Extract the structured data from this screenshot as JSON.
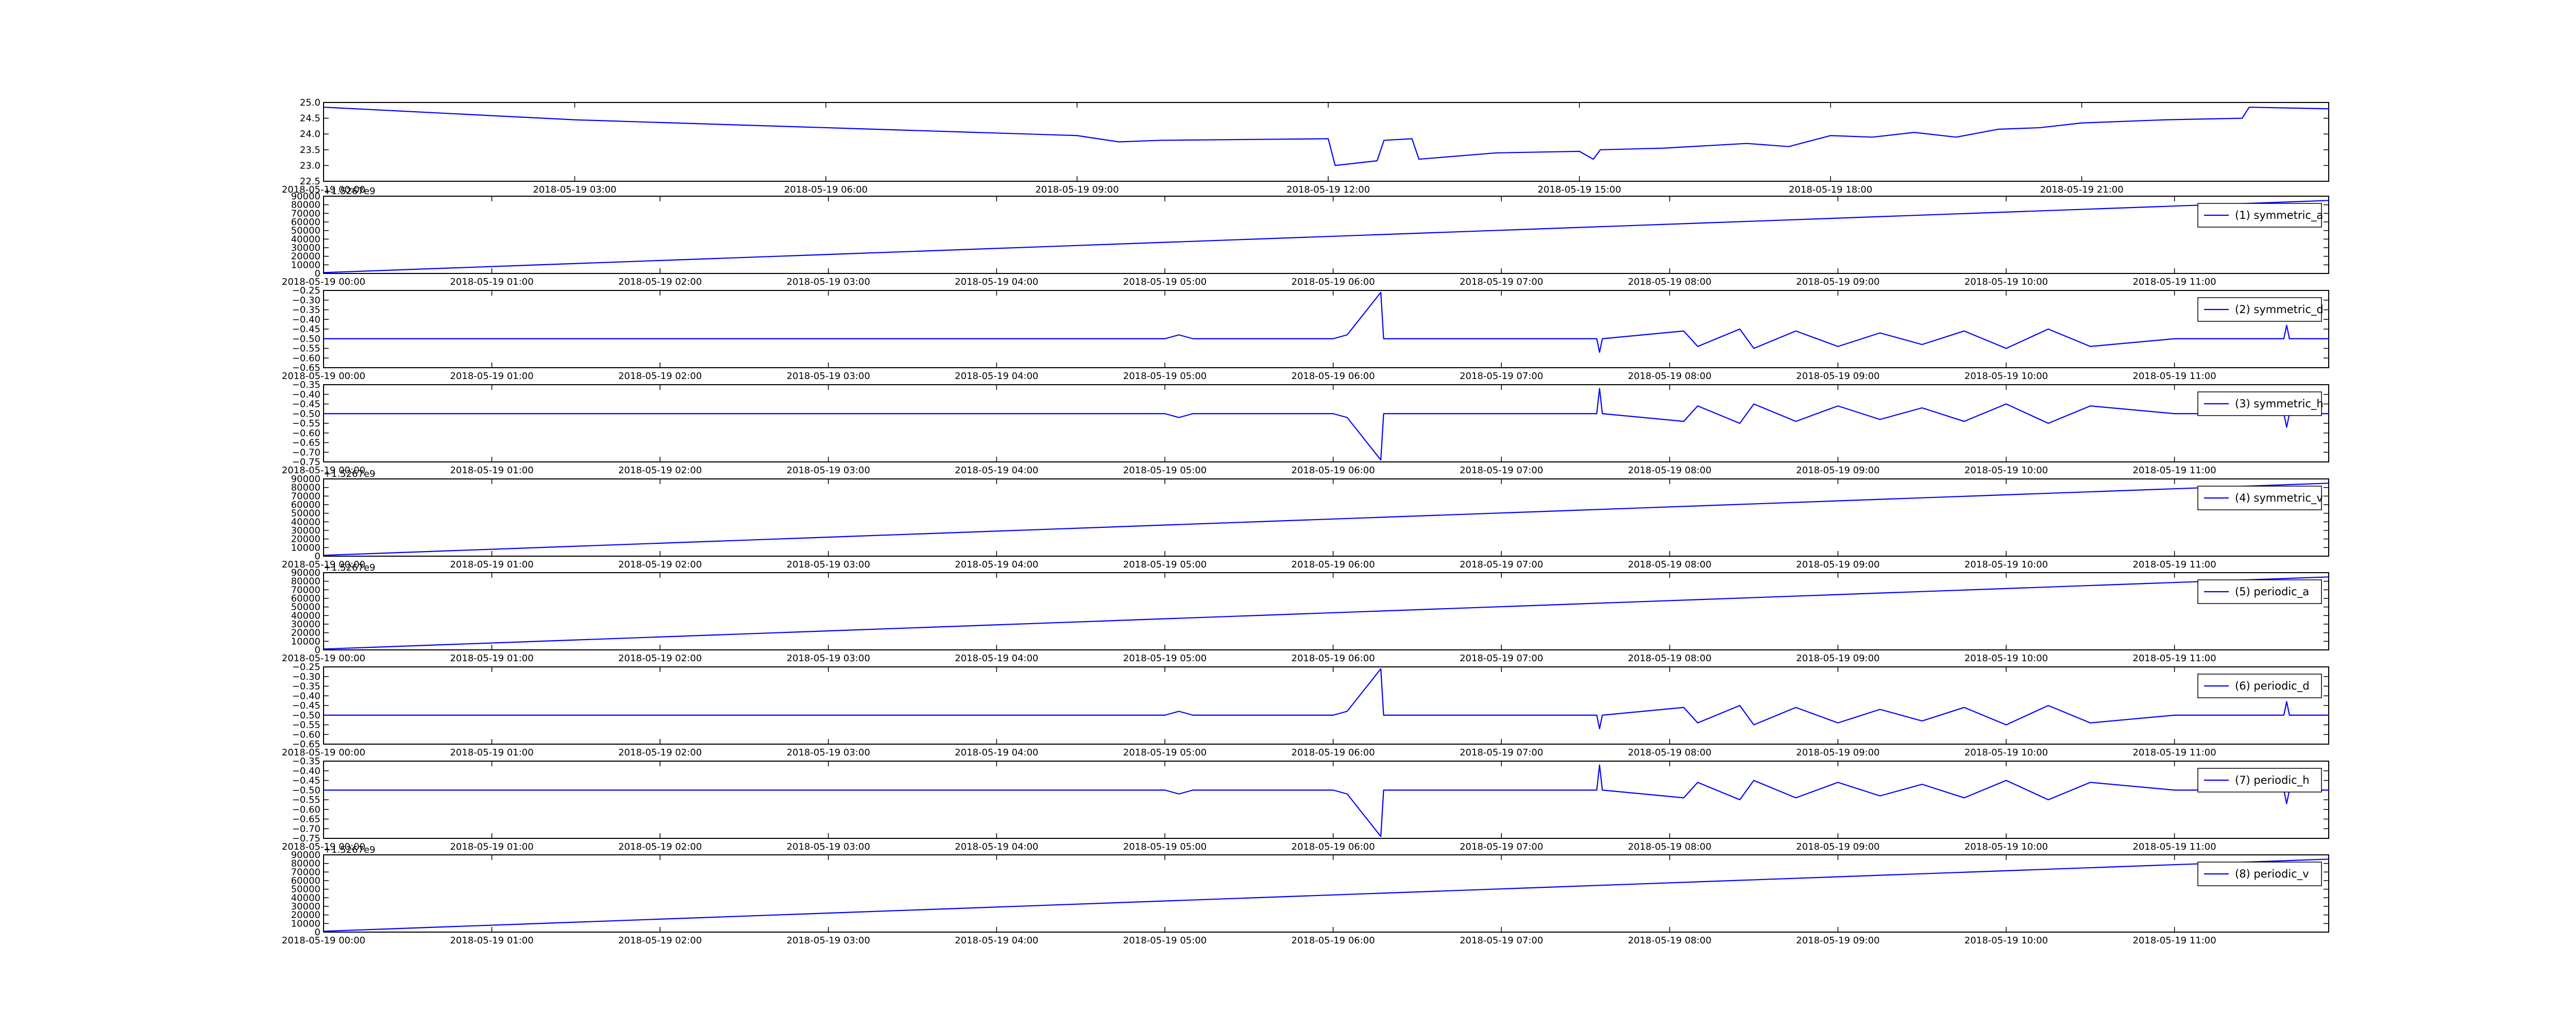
{
  "chart_data": [
    {
      "type": "line",
      "legend": null,
      "x": [
        "2018-05-19 00:00",
        "2018-05-19 03:00",
        "2018-05-19 06:00",
        "2018-05-19 09:00",
        "2018-05-19 09:30",
        "2018-05-19 10:00",
        "2018-05-19 12:00",
        "2018-05-19 12:05",
        "2018-05-19 12:35",
        "2018-05-19 12:40",
        "2018-05-19 13:00",
        "2018-05-19 13:05",
        "2018-05-19 14:00",
        "2018-05-19 15:00",
        "2018-05-19 15:10",
        "2018-05-19 15:15",
        "2018-05-19 16:00",
        "2018-05-19 17:00",
        "2018-05-19 17:30",
        "2018-05-19 18:00",
        "2018-05-19 18:30",
        "2018-05-19 19:00",
        "2018-05-19 19:30",
        "2018-05-19 20:00",
        "2018-05-19 20:30",
        "2018-05-19 21:00",
        "2018-05-19 22:00",
        "2018-05-19 22:55",
        "2018-05-19 23:00",
        "2018-05-19 23:57"
      ],
      "series": [
        {
          "name": null,
          "color": "#0000ff",
          "values": [
            24.85,
            24.45,
            24.2,
            23.95,
            23.75,
            23.8,
            23.85,
            23.0,
            23.15,
            23.8,
            23.85,
            23.2,
            23.4,
            23.45,
            23.2,
            23.5,
            23.55,
            23.7,
            23.6,
            23.95,
            23.9,
            24.05,
            23.9,
            24.15,
            24.2,
            24.35,
            24.45,
            24.5,
            24.85,
            24.8
          ]
        }
      ],
      "xlim": [
        "2018-05-19 00:00",
        "2018-05-19 23:57"
      ],
      "xticks": [
        "2018-05-19 00:00",
        "2018-05-19 03:00",
        "2018-05-19 06:00",
        "2018-05-19 09:00",
        "2018-05-19 12:00",
        "2018-05-19 15:00",
        "2018-05-19 18:00",
        "2018-05-19 21:00"
      ],
      "ylim": [
        22.5,
        25.0
      ],
      "yticks": [
        {
          "value": 22.5,
          "label": "22.5"
        },
        {
          "value": 23,
          "label": "23.0"
        },
        {
          "value": 23.5,
          "label": "23.5"
        },
        {
          "value": 24,
          "label": "24.0"
        },
        {
          "value": 24.5,
          "label": "24.5"
        },
        {
          "value": 25,
          "label": "25.0"
        }
      ]
    },
    {
      "type": "line",
      "offset_text": "+1.5267e9",
      "x": [
        "2018-05-19 00:00",
        "2018-05-19 11:55"
      ],
      "series": [
        {
          "name": "(1) symmetric_a",
          "color": "#0000ff",
          "values": [
            1000,
            85000
          ]
        }
      ],
      "xlim": [
        "2018-05-19 00:00",
        "2018-05-19 11:55"
      ],
      "xticks": [
        "2018-05-19 00:00",
        "2018-05-19 01:00",
        "2018-05-19 02:00",
        "2018-05-19 03:00",
        "2018-05-19 04:00",
        "2018-05-19 05:00",
        "2018-05-19 06:00",
        "2018-05-19 07:00",
        "2018-05-19 08:00",
        "2018-05-19 09:00",
        "2018-05-19 10:00",
        "2018-05-19 11:00"
      ],
      "ylim": [
        0,
        90000
      ],
      "yticks": [
        0,
        10000,
        20000,
        30000,
        40000,
        50000,
        60000,
        70000,
        80000,
        90000
      ]
    },
    {
      "type": "line",
      "x": [
        "2018-05-19 00:00",
        "2018-05-19 05:00",
        "2018-05-19 05:05",
        "2018-05-19 05:10",
        "2018-05-19 06:00",
        "2018-05-19 06:05",
        "2018-05-19 06:17",
        "2018-05-19 06:18",
        "2018-05-19 06:19",
        "2018-05-19 07:00",
        "2018-05-19 07:34",
        "2018-05-19 07:35",
        "2018-05-19 07:36",
        "2018-05-19 08:05",
        "2018-05-19 08:10",
        "2018-05-19 08:25",
        "2018-05-19 08:30",
        "2018-05-19 08:45",
        "2018-05-19 09:00",
        "2018-05-19 09:15",
        "2018-05-19 09:30",
        "2018-05-19 09:45",
        "2018-05-19 10:00",
        "2018-05-19 10:15",
        "2018-05-19 10:30",
        "2018-05-19 11:00",
        "2018-05-19 11:39",
        "2018-05-19 11:40",
        "2018-05-19 11:41",
        "2018-05-19 11:55"
      ],
      "series": [
        {
          "name": "(2) symmetric_d",
          "color": "#0000ff",
          "values": [
            -0.5,
            -0.5,
            -0.48,
            -0.5,
            -0.5,
            -0.48,
            -0.26,
            -0.5,
            -0.5,
            -0.5,
            -0.5,
            -0.57,
            -0.5,
            -0.46,
            -0.54,
            -0.45,
            -0.55,
            -0.46,
            -0.54,
            -0.47,
            -0.53,
            -0.46,
            -0.55,
            -0.45,
            -0.54,
            -0.5,
            -0.5,
            -0.43,
            -0.5,
            -0.5
          ]
        }
      ],
      "xlim": [
        "2018-05-19 00:00",
        "2018-05-19 11:55"
      ],
      "xticks": [
        "2018-05-19 00:00",
        "2018-05-19 01:00",
        "2018-05-19 02:00",
        "2018-05-19 03:00",
        "2018-05-19 04:00",
        "2018-05-19 05:00",
        "2018-05-19 06:00",
        "2018-05-19 07:00",
        "2018-05-19 08:00",
        "2018-05-19 09:00",
        "2018-05-19 10:00",
        "2018-05-19 11:00"
      ],
      "ylim": [
        -0.65,
        -0.25
      ],
      "yticks": [
        {
          "value": -0.65,
          "label": "−0.65"
        },
        {
          "value": -0.6,
          "label": "−0.60"
        },
        {
          "value": -0.55,
          "label": "−0.55"
        },
        {
          "value": -0.5,
          "label": "−0.50"
        },
        {
          "value": -0.45,
          "label": "−0.45"
        },
        {
          "value": -0.4,
          "label": "−0.40"
        },
        {
          "value": -0.35,
          "label": "−0.35"
        },
        {
          "value": -0.3,
          "label": "−0.30"
        },
        {
          "value": -0.25,
          "label": "−0.25"
        }
      ]
    },
    {
      "type": "line",
      "x": [
        "2018-05-19 00:00",
        "2018-05-19 05:00",
        "2018-05-19 05:05",
        "2018-05-19 05:10",
        "2018-05-19 06:00",
        "2018-05-19 06:05",
        "2018-05-19 06:17",
        "2018-05-19 06:18",
        "2018-05-19 06:19",
        "2018-05-19 07:00",
        "2018-05-19 07:34",
        "2018-05-19 07:35",
        "2018-05-19 07:36",
        "2018-05-19 08:05",
        "2018-05-19 08:10",
        "2018-05-19 08:25",
        "2018-05-19 08:30",
        "2018-05-19 08:45",
        "2018-05-19 09:00",
        "2018-05-19 09:15",
        "2018-05-19 09:30",
        "2018-05-19 09:45",
        "2018-05-19 10:00",
        "2018-05-19 10:15",
        "2018-05-19 10:30",
        "2018-05-19 11:00",
        "2018-05-19 11:39",
        "2018-05-19 11:40",
        "2018-05-19 11:41",
        "2018-05-19 11:55"
      ],
      "series": [
        {
          "name": "(3) symmetric_h",
          "color": "#0000ff",
          "values": [
            -0.5,
            -0.5,
            -0.52,
            -0.5,
            -0.5,
            -0.52,
            -0.74,
            -0.5,
            -0.5,
            -0.5,
            -0.5,
            -0.37,
            -0.5,
            -0.54,
            -0.46,
            -0.55,
            -0.45,
            -0.54,
            -0.46,
            -0.53,
            -0.47,
            -0.54,
            -0.45,
            -0.55,
            -0.46,
            -0.5,
            -0.5,
            -0.57,
            -0.5,
            -0.5
          ]
        }
      ],
      "xlim": [
        "2018-05-19 00:00",
        "2018-05-19 11:55"
      ],
      "xticks": [
        "2018-05-19 00:00",
        "2018-05-19 01:00",
        "2018-05-19 02:00",
        "2018-05-19 03:00",
        "2018-05-19 04:00",
        "2018-05-19 05:00",
        "2018-05-19 06:00",
        "2018-05-19 07:00",
        "2018-05-19 08:00",
        "2018-05-19 09:00",
        "2018-05-19 10:00",
        "2018-05-19 11:00"
      ],
      "ylim": [
        -0.75,
        -0.35
      ],
      "yticks": [
        {
          "value": -0.75,
          "label": "−0.75"
        },
        {
          "value": -0.7,
          "label": "−0.70"
        },
        {
          "value": -0.65,
          "label": "−0.65"
        },
        {
          "value": -0.6,
          "label": "−0.60"
        },
        {
          "value": -0.55,
          "label": "−0.55"
        },
        {
          "value": -0.5,
          "label": "−0.50"
        },
        {
          "value": -0.45,
          "label": "−0.45"
        },
        {
          "value": -0.4,
          "label": "−0.40"
        },
        {
          "value": -0.35,
          "label": "−0.35"
        }
      ]
    },
    {
      "type": "line",
      "offset_text": "+1.5267e9",
      "x": [
        "2018-05-19 00:00",
        "2018-05-19 11:55"
      ],
      "series": [
        {
          "name": "(4) symmetric_v",
          "color": "#0000ff",
          "values": [
            1000,
            85000
          ]
        }
      ],
      "xlim": [
        "2018-05-19 00:00",
        "2018-05-19 11:55"
      ],
      "xticks": [
        "2018-05-19 00:00",
        "2018-05-19 01:00",
        "2018-05-19 02:00",
        "2018-05-19 03:00",
        "2018-05-19 04:00",
        "2018-05-19 05:00",
        "2018-05-19 06:00",
        "2018-05-19 07:00",
        "2018-05-19 08:00",
        "2018-05-19 09:00",
        "2018-05-19 10:00",
        "2018-05-19 11:00"
      ],
      "ylim": [
        0,
        90000
      ],
      "yticks": [
        0,
        10000,
        20000,
        30000,
        40000,
        50000,
        60000,
        70000,
        80000,
        90000
      ]
    },
    {
      "type": "line",
      "offset_text": "+1.5267e9",
      "x": [
        "2018-05-19 00:00",
        "2018-05-19 11:55"
      ],
      "series": [
        {
          "name": "(5) periodic_a",
          "color": "#0000ff",
          "values": [
            1000,
            85000
          ]
        }
      ],
      "xlim": [
        "2018-05-19 00:00",
        "2018-05-19 11:55"
      ],
      "xticks": [
        "2018-05-19 00:00",
        "2018-05-19 01:00",
        "2018-05-19 02:00",
        "2018-05-19 03:00",
        "2018-05-19 04:00",
        "2018-05-19 05:00",
        "2018-05-19 06:00",
        "2018-05-19 07:00",
        "2018-05-19 08:00",
        "2018-05-19 09:00",
        "2018-05-19 10:00",
        "2018-05-19 11:00"
      ],
      "ylim": [
        0,
        90000
      ],
      "yticks": [
        0,
        10000,
        20000,
        30000,
        40000,
        50000,
        60000,
        70000,
        80000,
        90000
      ]
    },
    {
      "type": "line",
      "x": [
        "2018-05-19 00:00",
        "2018-05-19 05:00",
        "2018-05-19 05:05",
        "2018-05-19 05:10",
        "2018-05-19 06:00",
        "2018-05-19 06:05",
        "2018-05-19 06:17",
        "2018-05-19 06:18",
        "2018-05-19 06:19",
        "2018-05-19 07:00",
        "2018-05-19 07:34",
        "2018-05-19 07:35",
        "2018-05-19 07:36",
        "2018-05-19 08:05",
        "2018-05-19 08:10",
        "2018-05-19 08:25",
        "2018-05-19 08:30",
        "2018-05-19 08:45",
        "2018-05-19 09:00",
        "2018-05-19 09:15",
        "2018-05-19 09:30",
        "2018-05-19 09:45",
        "2018-05-19 10:00",
        "2018-05-19 10:15",
        "2018-05-19 10:30",
        "2018-05-19 11:00",
        "2018-05-19 11:39",
        "2018-05-19 11:40",
        "2018-05-19 11:41",
        "2018-05-19 11:55"
      ],
      "series": [
        {
          "name": "(6) periodic_d",
          "color": "#0000ff",
          "values": [
            -0.5,
            -0.5,
            -0.48,
            -0.5,
            -0.5,
            -0.48,
            -0.26,
            -0.5,
            -0.5,
            -0.5,
            -0.5,
            -0.57,
            -0.5,
            -0.46,
            -0.54,
            -0.45,
            -0.55,
            -0.46,
            -0.54,
            -0.47,
            -0.53,
            -0.46,
            -0.55,
            -0.45,
            -0.54,
            -0.5,
            -0.5,
            -0.43,
            -0.5,
            -0.5
          ]
        }
      ],
      "xlim": [
        "2018-05-19 00:00",
        "2018-05-19 11:55"
      ],
      "xticks": [
        "2018-05-19 00:00",
        "2018-05-19 01:00",
        "2018-05-19 02:00",
        "2018-05-19 03:00",
        "2018-05-19 04:00",
        "2018-05-19 05:00",
        "2018-05-19 06:00",
        "2018-05-19 07:00",
        "2018-05-19 08:00",
        "2018-05-19 09:00",
        "2018-05-19 10:00",
        "2018-05-19 11:00"
      ],
      "ylim": [
        -0.65,
        -0.25
      ],
      "yticks": [
        {
          "value": -0.65,
          "label": "−0.65"
        },
        {
          "value": -0.6,
          "label": "−0.60"
        },
        {
          "value": -0.55,
          "label": "−0.55"
        },
        {
          "value": -0.5,
          "label": "−0.50"
        },
        {
          "value": -0.45,
          "label": "−0.45"
        },
        {
          "value": -0.4,
          "label": "−0.40"
        },
        {
          "value": -0.35,
          "label": "−0.35"
        },
        {
          "value": -0.3,
          "label": "−0.30"
        },
        {
          "value": -0.25,
          "label": "−0.25"
        }
      ]
    },
    {
      "type": "line",
      "x": [
        "2018-05-19 00:00",
        "2018-05-19 05:00",
        "2018-05-19 05:05",
        "2018-05-19 05:10",
        "2018-05-19 06:00",
        "2018-05-19 06:05",
        "2018-05-19 06:17",
        "2018-05-19 06:18",
        "2018-05-19 06:19",
        "2018-05-19 07:00",
        "2018-05-19 07:34",
        "2018-05-19 07:35",
        "2018-05-19 07:36",
        "2018-05-19 08:05",
        "2018-05-19 08:10",
        "2018-05-19 08:25",
        "2018-05-19 08:30",
        "2018-05-19 08:45",
        "2018-05-19 09:00",
        "2018-05-19 09:15",
        "2018-05-19 09:30",
        "2018-05-19 09:45",
        "2018-05-19 10:00",
        "2018-05-19 10:15",
        "2018-05-19 10:30",
        "2018-05-19 11:00",
        "2018-05-19 11:39",
        "2018-05-19 11:40",
        "2018-05-19 11:41",
        "2018-05-19 11:55"
      ],
      "series": [
        {
          "name": "(7) periodic_h",
          "color": "#0000ff",
          "values": [
            -0.5,
            -0.5,
            -0.52,
            -0.5,
            -0.5,
            -0.52,
            -0.74,
            -0.5,
            -0.5,
            -0.5,
            -0.5,
            -0.37,
            -0.5,
            -0.54,
            -0.46,
            -0.55,
            -0.45,
            -0.54,
            -0.46,
            -0.53,
            -0.47,
            -0.54,
            -0.45,
            -0.55,
            -0.46,
            -0.5,
            -0.5,
            -0.57,
            -0.5,
            -0.5
          ]
        }
      ],
      "xlim": [
        "2018-05-19 00:00",
        "2018-05-19 11:55"
      ],
      "xticks": [
        "2018-05-19 00:00",
        "2018-05-19 01:00",
        "2018-05-19 02:00",
        "2018-05-19 03:00",
        "2018-05-19 04:00",
        "2018-05-19 05:00",
        "2018-05-19 06:00",
        "2018-05-19 07:00",
        "2018-05-19 08:00",
        "2018-05-19 09:00",
        "2018-05-19 10:00",
        "2018-05-19 11:00"
      ],
      "ylim": [
        -0.75,
        -0.35
      ],
      "yticks": [
        {
          "value": -0.75,
          "label": "−0.75"
        },
        {
          "value": -0.7,
          "label": "−0.70"
        },
        {
          "value": -0.65,
          "label": "−0.65"
        },
        {
          "value": -0.6,
          "label": "−0.60"
        },
        {
          "value": -0.55,
          "label": "−0.55"
        },
        {
          "value": -0.5,
          "label": "−0.50"
        },
        {
          "value": -0.45,
          "label": "−0.45"
        },
        {
          "value": -0.4,
          "label": "−0.40"
        },
        {
          "value": -0.35,
          "label": "−0.35"
        }
      ]
    },
    {
      "type": "line",
      "offset_text": "+1.5267e9",
      "x": [
        "2018-05-19 00:00",
        "2018-05-19 11:55"
      ],
      "series": [
        {
          "name": "(8) periodic_v",
          "color": "#0000ff",
          "values": [
            1000,
            85000
          ]
        }
      ],
      "xlim": [
        "2018-05-19 00:00",
        "2018-05-19 11:55"
      ],
      "xticks": [
        "2018-05-19 00:00",
        "2018-05-19 01:00",
        "2018-05-19 02:00",
        "2018-05-19 03:00",
        "2018-05-19 04:00",
        "2018-05-19 05:00",
        "2018-05-19 06:00",
        "2018-05-19 07:00",
        "2018-05-19 08:00",
        "2018-05-19 09:00",
        "2018-05-19 10:00",
        "2018-05-19 11:00"
      ],
      "ylim": [
        0,
        90000
      ],
      "yticks": [
        0,
        10000,
        20000,
        30000,
        40000,
        50000,
        60000,
        70000,
        80000,
        90000
      ]
    }
  ]
}
